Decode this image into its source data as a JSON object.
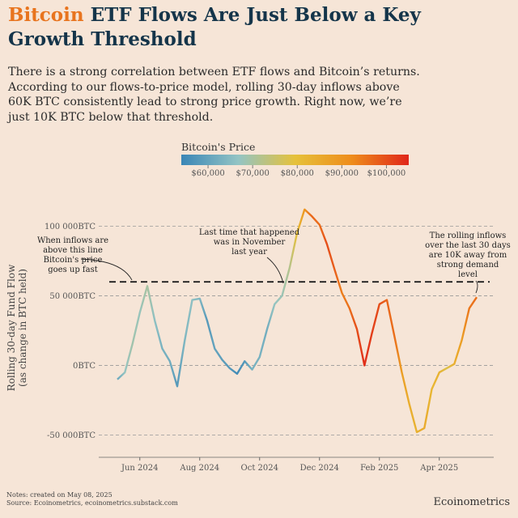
{
  "chart_data": {
    "type": "line",
    "title": [
      "Bitcoin",
      "ETF Flows Are Just Below a Key Growth Threshold"
    ],
    "title_highlight_color": "#e8741e",
    "subtitle": [
      "There is a strong correlation between ETF flows and Bitcoin’s returns.",
      "According to our flows-to-price model, rolling 30-day inflows above",
      "60K BTC consistently lead to strong price growth. Right now, we’re",
      "just 10K BTC below that threshold."
    ],
    "ylabel": [
      "Rolling 30-day Fund Flow",
      "(as change in BTC held)"
    ],
    "categories": [
      null,
      null,
      null,
      "Jun 2024",
      null,
      null,
      null,
      null,
      null,
      null,
      null,
      "Aug 2024",
      null,
      null,
      null,
      null,
      null,
      null,
      null,
      "Oct 2024",
      null,
      null,
      null,
      null,
      null,
      null,
      null,
      "Dec 2024",
      null,
      null,
      null,
      null,
      null,
      null,
      null,
      "Feb 2025",
      null,
      null,
      null,
      null,
      null,
      null,
      null,
      "Apr 2025",
      null,
      null,
      null,
      null,
      null
    ],
    "series": [
      {
        "values": [
          -10000,
          -5000,
          15000,
          38000,
          57000,
          32000,
          12000,
          3000,
          -15000,
          18000,
          47000,
          48000,
          32000,
          12000,
          4000,
          -2000,
          -6000,
          3000,
          -3000,
          6000,
          26000,
          44000,
          50000,
          70000,
          95000,
          112000,
          107000,
          101000,
          87000,
          69000,
          52000,
          41000,
          26000,
          0,
          23000,
          44000,
          47000,
          21000,
          -5000,
          -28000,
          -48000,
          -45000,
          -17000,
          -5000,
          -2000,
          1000,
          18000,
          41000,
          49000
        ],
        "price": [
          61000,
          67000,
          69000,
          67500,
          70000,
          66000,
          63000,
          62000,
          58000,
          64000,
          66000,
          64000,
          58000,
          60000,
          59000,
          58000,
          55000,
          58000,
          63000,
          63000,
          62000,
          67000,
          68000,
          72000,
          80000,
          90000,
          97000,
          96000,
          100000,
          98000,
          94000,
          96000,
          100000,
          104000,
          102000,
          100000,
          97000,
          96000,
          88000,
          84000,
          83000,
          85000,
          82000,
          83000,
          78000,
          84000,
          88000,
          95000,
          96000
        ]
      }
    ],
    "ylim": [
      -66000,
      120000
    ],
    "yticks": [
      {
        "value": -50000,
        "label": "-50 000BTC"
      },
      {
        "value": 0,
        "label": "0BTC"
      },
      {
        "value": 50000,
        "label": "50 000BTC"
      },
      {
        "value": 100000,
        "label": "100 000BTC"
      }
    ],
    "grid": true,
    "reference_line": 60000,
    "colorbar": {
      "label": "Bitcoin's Price",
      "clim": [
        54000,
        105000
      ],
      "colormap": [
        "#3a86b6",
        "#93c4c4",
        "#e6c13a",
        "#ee8c1b",
        "#e0261a"
      ],
      "ticks": [
        {
          "value": 60000,
          "label": "$60,000"
        },
        {
          "value": 70000,
          "label": "$70,000"
        },
        {
          "value": 80000,
          "label": "$80,000"
        },
        {
          "value": 90000,
          "label": "$90,000"
        },
        {
          "value": 100000,
          "label": "$100,000"
        }
      ]
    },
    "annotations": [
      {
        "text": [
          "When inflows are",
          "above this line",
          "Bitcoin's price",
          "goes up fast"
        ]
      },
      {
        "text": [
          "Last time that happened",
          "was in November",
          "last year"
        ]
      },
      {
        "text": [
          "The rolling inflows",
          "over the last 30 days",
          "are 10K away from",
          "strong demand",
          "level"
        ]
      }
    ],
    "notes": [
      "Notes: created on May 08, 2025",
      "Source: Ecoinometrics, ecoinometrics.substack.com"
    ],
    "brand": "Ecoinometrics"
  }
}
